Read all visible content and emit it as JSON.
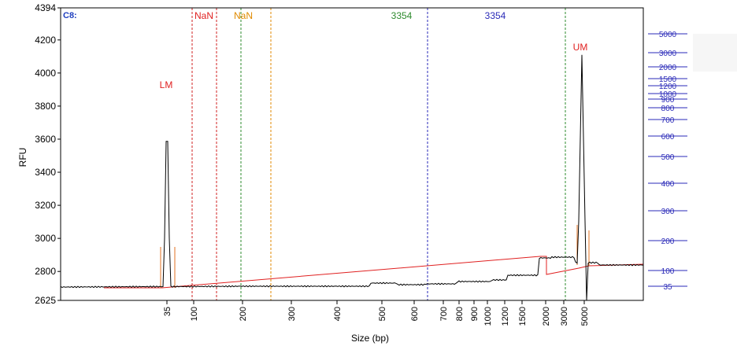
{
  "chart_data": {
    "type": "line",
    "title": "",
    "sample_label": "C8:",
    "xlabel": "Size (bp)",
    "ylabel": "RFU",
    "ylim": [
      2625,
      4394
    ],
    "y_ticks": [
      2625,
      2800,
      3000,
      3200,
      3400,
      3600,
      3800,
      4000,
      4200,
      4394
    ],
    "x_ticks": [
      "35",
      "100",
      "200",
      "300",
      "400",
      "500",
      "600",
      "700",
      "800",
      "900",
      "1000",
      "1200",
      "1500",
      "2000",
      "3000",
      "5000"
    ],
    "ladder_scale": {
      "labels": [
        "5000",
        "3000",
        "2000",
        "1500",
        "1200",
        "1000",
        "900",
        "800",
        "700",
        "600",
        "500",
        "400",
        "300",
        "200",
        "100",
        "35"
      ]
    },
    "markers": [
      {
        "label": "LM",
        "color": "#e02020",
        "x": "35",
        "peak_rfu": 3880
      },
      {
        "label": "UM",
        "color": "#e02020",
        "x": "5000",
        "peak_rfu": 4110
      }
    ],
    "region_labels": [
      {
        "label": "NaN",
        "color": "#e02020"
      },
      {
        "label": "NaN",
        "color": "#e08a00"
      },
      {
        "label": "3354",
        "color": "#2e8b2e"
      },
      {
        "label": "3354",
        "color": "#2a2ab8"
      }
    ],
    "series": [
      {
        "color": "#000000",
        "values": []
      },
      {
        "color": "#e02020",
        "values": []
      }
    ]
  }
}
